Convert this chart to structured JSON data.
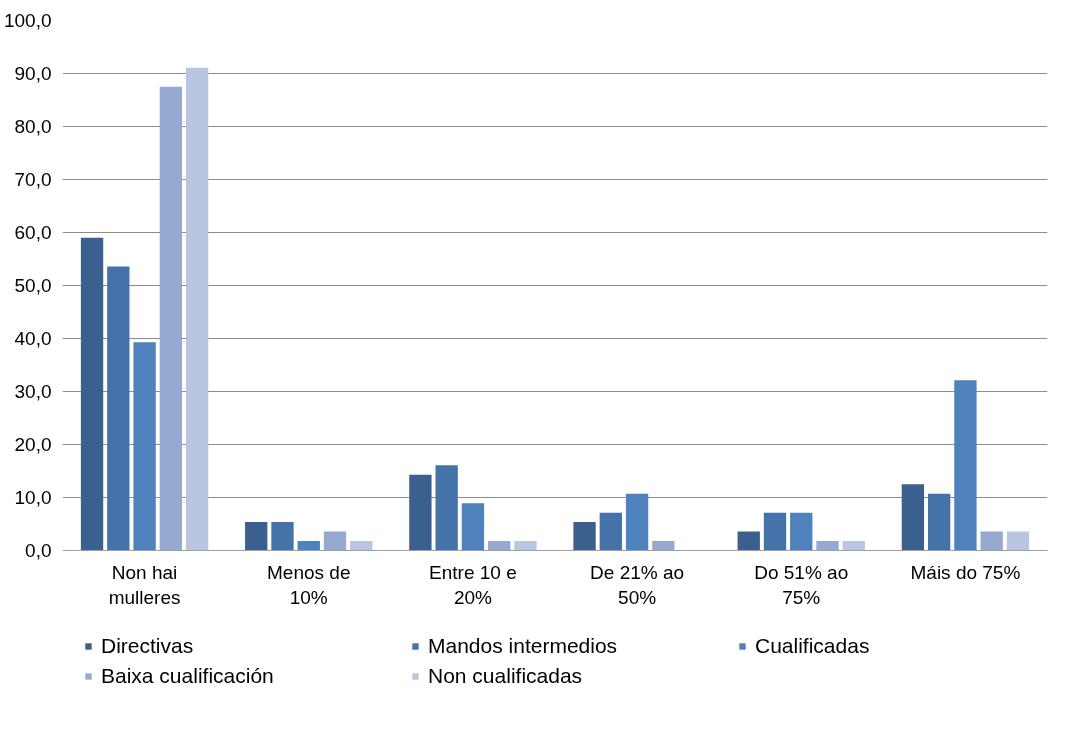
{
  "chart_data": {
    "type": "bar",
    "categories": [
      "Non hai mulleres",
      "Menos de 10%",
      "Entre 10 e 20%",
      "De 21% ao 50%",
      "Do 51% ao 75%",
      "Máis do 75%"
    ],
    "series": [
      {
        "name": "Directivas",
        "color": "#3b5f8e",
        "values": [
          59.0,
          5.4,
          14.3,
          5.4,
          3.6,
          12.5
        ]
      },
      {
        "name": "Mandos intermedios",
        "color": "#4572a9",
        "values": [
          53.6,
          5.4,
          16.1,
          7.1,
          7.1,
          10.7
        ]
      },
      {
        "name": "Cualificadas",
        "color": "#4f81bd",
        "values": [
          39.3,
          1.8,
          8.9,
          10.7,
          7.1,
          32.1
        ]
      },
      {
        "name": "Baixa cualificación",
        "color": "#95a9d1",
        "values": [
          87.5,
          3.6,
          1.8,
          1.8,
          1.8,
          3.6
        ]
      },
      {
        "name": "Non cualificadas",
        "color": "#b9c6e1",
        "values": [
          91.1,
          1.8,
          1.8,
          0,
          1.8,
          3.6
        ]
      }
    ],
    "ylim": [
      0,
      100
    ],
    "yticks": [
      {
        "value": 0,
        "label": "0,0"
      },
      {
        "value": 10,
        "label": "10,0"
      },
      {
        "value": 20,
        "label": "20,0"
      },
      {
        "value": 30,
        "label": "30,0"
      },
      {
        "value": 40,
        "label": "40,0"
      },
      {
        "value": 50,
        "label": "50,0"
      },
      {
        "value": 60,
        "label": "60,0"
      },
      {
        "value": 70,
        "label": "70,0"
      },
      {
        "value": 80,
        "label": "80,0"
      },
      {
        "value": 90,
        "label": "90,0"
      },
      {
        "value": 100,
        "label": "100,0"
      }
    ],
    "grid": "y",
    "legend": "bottom"
  }
}
